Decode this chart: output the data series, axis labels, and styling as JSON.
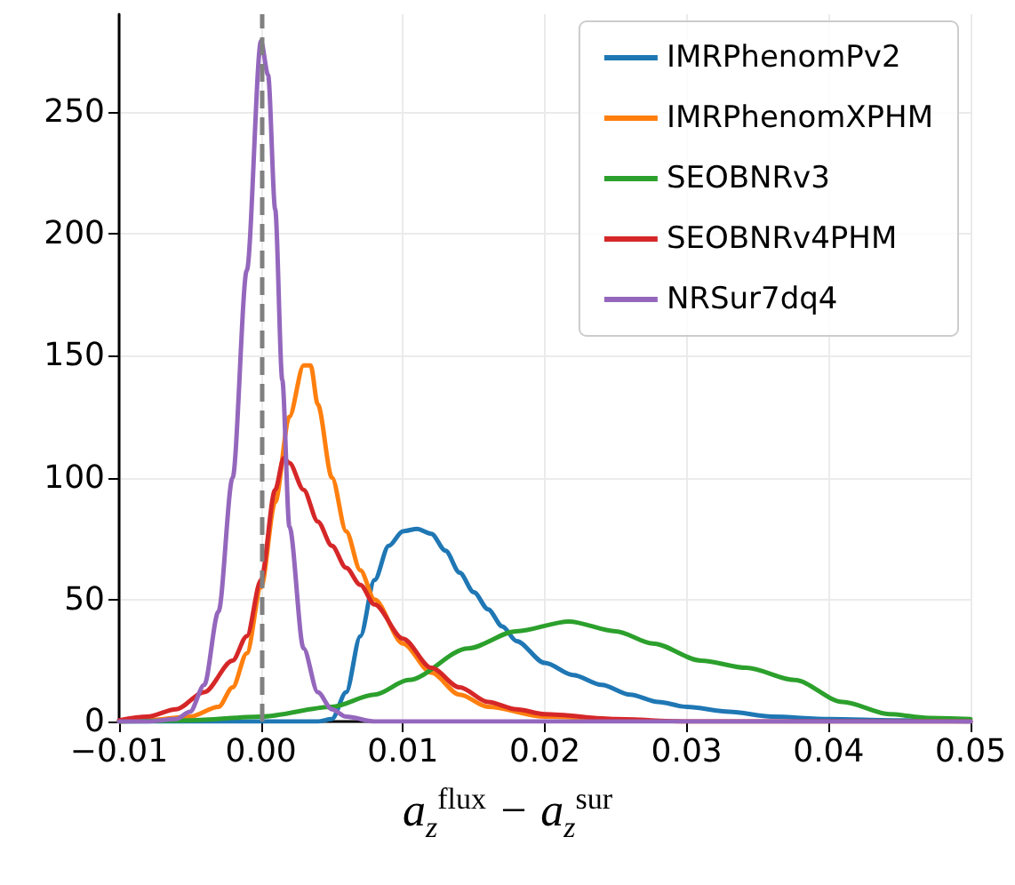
{
  "chart_data": {
    "type": "line",
    "xlabel": "a$_{z}$$^{flux}$ − a$_{z}$$^{sur}$",
    "xlim": [
      -0.01,
      0.05
    ],
    "xticks": [
      {
        "value": -0.01,
        "label": "−0.01"
      },
      {
        "value": 0,
        "label": "0.00"
      },
      {
        "value": 0.01,
        "label": "0.01"
      },
      {
        "value": 0.02,
        "label": "0.02"
      },
      {
        "value": 0.03,
        "label": "0.03"
      },
      {
        "value": 0.04,
        "label": "0.04"
      },
      {
        "value": 0.05,
        "label": "0.05"
      }
    ],
    "ylim": [
      0,
      290
    ],
    "yticks": [
      0,
      50,
      100,
      150,
      200,
      250
    ],
    "grid": true,
    "legend": "top right",
    "marker": "none",
    "line_style": "solid",
    "ref_lines": [
      {
        "axis": "x",
        "value": 0,
        "color": "#808080",
        "line_style": "dashed"
      }
    ],
    "series": [
      {
        "name": "IMRPhenomPv2",
        "color": "#1f77b4",
        "x": [
          -0.01,
          0.004,
          0.005,
          0.006,
          0.007,
          0.008,
          0.009,
          0.01,
          0.011,
          0.012,
          0.013,
          0.014,
          0.015,
          0.016,
          0.017,
          0.018,
          0.02,
          0.022,
          0.024,
          0.026,
          0.028,
          0.03,
          0.033,
          0.036,
          0.04,
          0.045,
          0.05
        ],
        "values": [
          0,
          0,
          1,
          12,
          35,
          58,
          72,
          78,
          79,
          77,
          70,
          61,
          53,
          46,
          39,
          33,
          24,
          19,
          15,
          11,
          8,
          6,
          4,
          2,
          1,
          0.5,
          0
        ]
      },
      {
        "name": "IMRPhenomXPHM",
        "color": "#ff7f0e",
        "x": [
          -0.01,
          -0.008,
          -0.005,
          -0.003,
          -0.002,
          -0.001,
          0,
          0.001,
          0.002,
          0.003,
          0.0035,
          0.004,
          0.005,
          0.006,
          0.007,
          0.008,
          0.01,
          0.012,
          0.014,
          0.016,
          0.02,
          0.025
        ],
        "values": [
          0,
          0.5,
          2,
          6,
          14,
          28,
          55,
          90,
          125,
          146,
          146,
          130,
          100,
          78,
          62,
          50,
          32,
          20,
          11,
          6,
          2,
          0.5
        ]
      },
      {
        "name": "SEOBNRv3",
        "color": "#2ca02c",
        "x": [
          -0.01,
          -0.005,
          0,
          0.005,
          0.008,
          0.0104,
          0.0146,
          0.018,
          0.0217,
          0.025,
          0.0276,
          0.031,
          0.0342,
          0.0376,
          0.041,
          0.0443,
          0.047,
          0.05
        ],
        "values": [
          0,
          0.5,
          2,
          6,
          11,
          17,
          30,
          37,
          41,
          37,
          32,
          25,
          22,
          17,
          8,
          3,
          1.5,
          1
        ]
      },
      {
        "name": "SEOBNRv4PHM",
        "color": "#d62728",
        "x": [
          -0.01,
          -0.008,
          -0.006,
          -0.004,
          -0.002,
          -0.001,
          0,
          0.001,
          0.0016,
          0.002,
          0.003,
          0.004,
          0.005,
          0.006,
          0.007,
          0.008,
          0.01,
          0.012,
          0.014,
          0.016,
          0.018,
          0.02,
          0.025,
          0.03,
          0.05
        ],
        "values": [
          0.5,
          2,
          5,
          12,
          25,
          35,
          58,
          95,
          108,
          106,
          95,
          82,
          72,
          63,
          56,
          48,
          34,
          22,
          14,
          8,
          5,
          3,
          1,
          0,
          0
        ]
      },
      {
        "name": "NRSur7dq4",
        "color": "#9467bd",
        "x": [
          -0.01,
          -0.008,
          -0.006,
          -0.005,
          -0.004,
          -0.003,
          -0.002,
          -0.001,
          0,
          0.0005,
          0.001,
          0.0015,
          0.002,
          0.003,
          0.004,
          0.005,
          0.006,
          0.008,
          0.01,
          0.05
        ],
        "values": [
          0,
          0,
          1,
          4,
          15,
          45,
          100,
          185,
          279,
          265,
          210,
          140,
          80,
          30,
          12,
          5,
          2,
          0,
          0,
          0
        ]
      }
    ]
  }
}
